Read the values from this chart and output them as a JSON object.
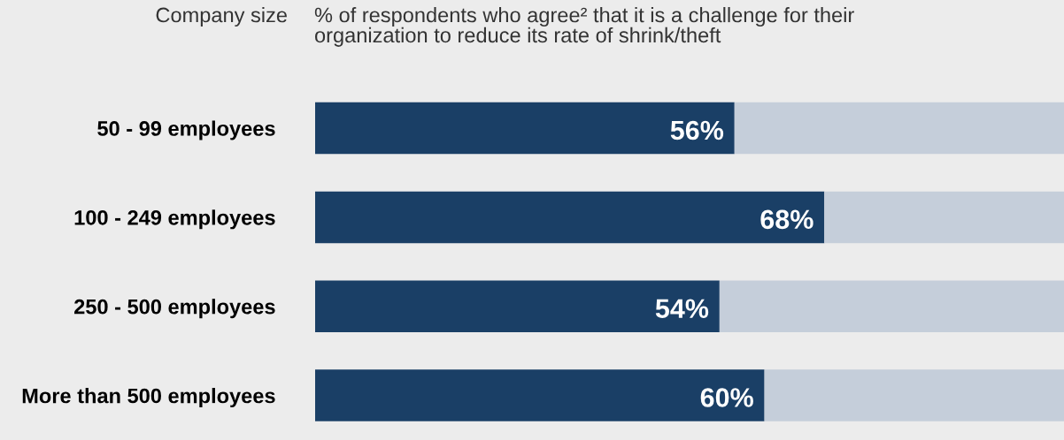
{
  "chart_data": {
    "type": "bar",
    "orientation": "horizontal",
    "stacked": true,
    "title": "% of respondents who agree² that it is a challenge for their\norganization to reduce its rate of shrink/theft",
    "ylabel": "Company size",
    "categories": [
      "50 - 99 employees",
      "100 - 249 employees",
      "250 - 500 employees",
      "More than 500 employees"
    ],
    "series": [
      {
        "color": "#1a3f66",
        "values": [
          56,
          68,
          54,
          60
        ],
        "value_labels": [
          "56%",
          "68%",
          "54%",
          "60%"
        ]
      },
      {
        "color": "#c5ceda",
        "values": [
          44,
          32,
          46,
          40
        ]
      }
    ],
    "xlim": [
      0,
      100
    ],
    "tick_labels": "y",
    "grid": false,
    "legend": false
  }
}
